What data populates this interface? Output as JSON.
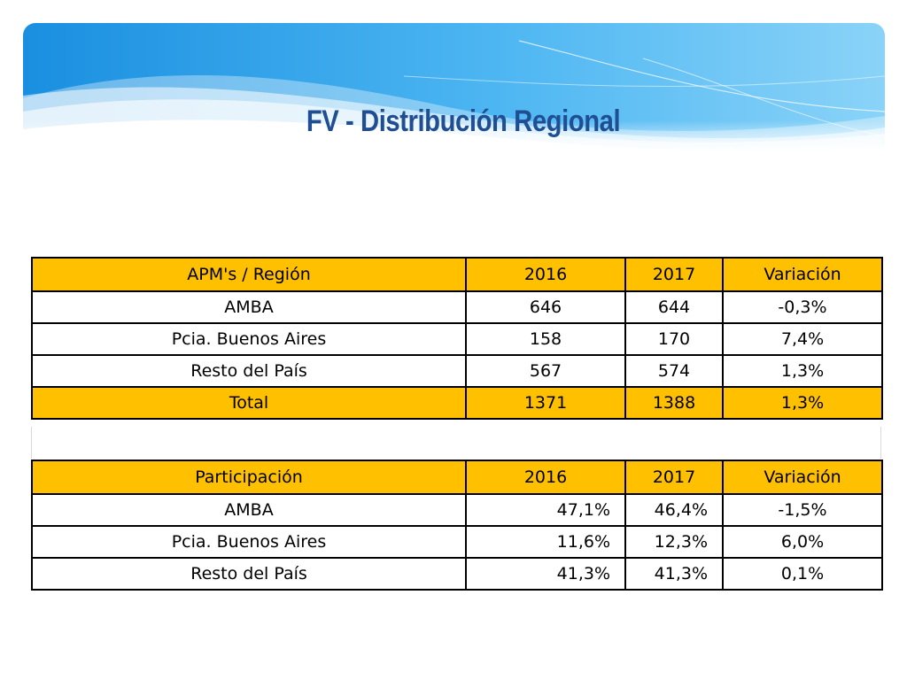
{
  "title": "FV - Distribución Regional",
  "colors": {
    "title": "#1f4e92",
    "header_fill": "#ffc000",
    "banner_blue": "#1e9be6"
  },
  "table_volume": {
    "headers": [
      "APM's / Región",
      "2016",
      "2017",
      "Variación"
    ],
    "rows": [
      [
        "AMBA",
        "646",
        "644",
        "-0,3%"
      ],
      [
        "Pcia. Buenos Aires",
        "158",
        "170",
        "7,4%"
      ],
      [
        "Resto del País",
        "567",
        "574",
        "1,3%"
      ]
    ],
    "total": [
      "Total",
      "1371",
      "1388",
      "1,3%"
    ]
  },
  "table_share": {
    "headers": [
      "Participación",
      "2016",
      "2017",
      "Variación"
    ],
    "rows": [
      [
        "AMBA",
        "47,1%",
        "46,4%",
        "-1,5%"
      ],
      [
        "Pcia. Buenos Aires",
        "11,6%",
        "12,3%",
        "6,0%"
      ],
      [
        "Resto del País",
        "41,3%",
        "41,3%",
        "0,1%"
      ]
    ]
  }
}
